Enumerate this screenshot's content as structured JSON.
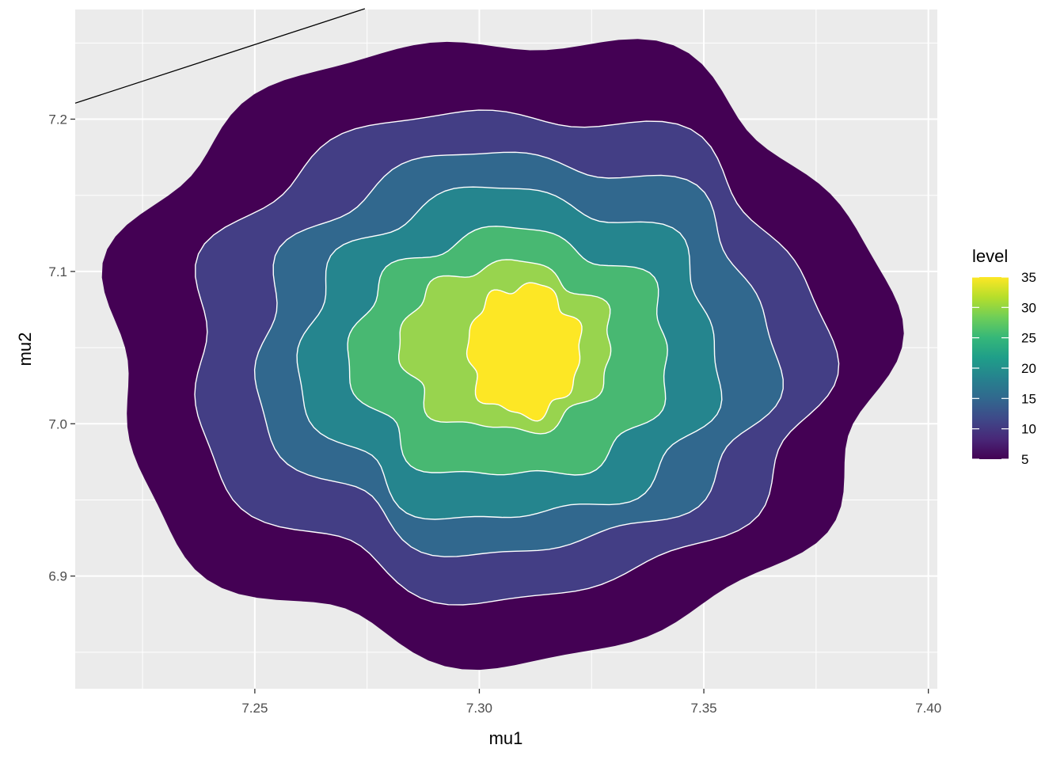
{
  "chart_data": {
    "type": "filled-contour",
    "xlabel": "mu1",
    "ylabel": "mu2",
    "xlim": [
      7.21,
      7.402
    ],
    "ylim": [
      6.826,
      7.272
    ],
    "x_ticks": [
      7.25,
      7.3,
      7.35,
      7.4
    ],
    "x_tick_labels": [
      "7.25",
      "7.30",
      "7.35",
      "7.40"
    ],
    "y_ticks": [
      6.9,
      7.0,
      7.1,
      7.2
    ],
    "y_tick_labels": [
      "6.9",
      "7.0",
      "7.1",
      "7.2"
    ],
    "grid": true,
    "legend": {
      "title": "level",
      "placement": "right",
      "min": 5,
      "max": 35,
      "labels": [
        "35",
        "30",
        "25",
        "20",
        "15",
        "10",
        "5"
      ],
      "label_values": [
        35,
        30,
        25,
        20,
        15,
        10,
        5
      ],
      "colors": [
        "#440154",
        "#482878",
        "#3e4989",
        "#31688e",
        "#26828e",
        "#1f9e89",
        "#35b779",
        "#6ece58",
        "#b5de2b",
        "#fde725"
      ]
    },
    "density_center": {
      "mu1": 7.306,
      "mu2": 7.047
    },
    "levels": [
      {
        "level": 5,
        "color": "#440154",
        "center": [
          7.304,
          7.05
        ],
        "rx": 0.0865,
        "ry": 0.204
      },
      {
        "level": 10,
        "color": "#433e85",
        "center": [
          7.306,
          7.047
        ],
        "rx": 0.0705,
        "ry": 0.16
      },
      {
        "level": 15,
        "color": "#31688e",
        "center": [
          7.308,
          7.047
        ],
        "rx": 0.0575,
        "ry": 0.131
      },
      {
        "level": 20,
        "color": "#25858e",
        "center": [
          7.307,
          7.045
        ],
        "rx": 0.0465,
        "ry": 0.108
      },
      {
        "level": 25,
        "color": "#48b872",
        "center": [
          7.307,
          7.045
        ],
        "rx": 0.0355,
        "ry": 0.081
      },
      {
        "level": 30,
        "color": "#98d44e",
        "center": [
          7.306,
          7.05
        ],
        "rx": 0.0235,
        "ry": 0.055
      },
      {
        "level": 35,
        "color": "#fde725",
        "center": [
          7.31,
          7.048
        ],
        "rx": 0.0125,
        "ry": 0.043
      }
    ],
    "line": {
      "x": [
        7.21,
        7.2745
      ],
      "y": [
        7.2105,
        7.2725
      ],
      "color": "#000000"
    }
  }
}
